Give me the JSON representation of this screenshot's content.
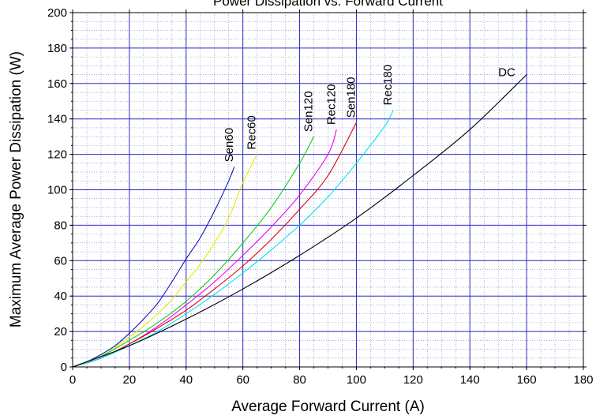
{
  "chart_data": {
    "type": "line",
    "title": "Power Dissipation vs. Forward Current",
    "xlabel": "Average Forward Current (A)",
    "ylabel": "Maximum Average Power Dissipation (W)",
    "xlim": [
      0,
      180
    ],
    "ylim": [
      0,
      200
    ],
    "x_ticks": [
      0,
      20,
      40,
      60,
      80,
      100,
      120,
      140,
      160,
      180
    ],
    "y_ticks": [
      0,
      20,
      40,
      60,
      80,
      100,
      120,
      140,
      160,
      180,
      200
    ],
    "grid": true,
    "colors": {
      "major_grid": "#2a2ac8",
      "minor_grid": "#7a7ad8"
    },
    "series": [
      {
        "name": "Sen60",
        "color": "#1010c0",
        "x": [
          0,
          5,
          10,
          15,
          20,
          25,
          30,
          35,
          40,
          45,
          50,
          55,
          57
        ],
        "y": [
          0,
          3,
          7,
          12,
          19,
          27,
          36,
          48,
          61,
          73,
          88,
          105,
          113
        ]
      },
      {
        "name": "Rec60",
        "color": "#e8e800",
        "x": [
          0,
          5,
          10,
          15,
          20,
          25,
          30,
          35,
          40,
          45,
          50,
          55,
          60,
          65
        ],
        "y": [
          0,
          3,
          6,
          11,
          17,
          23,
          30,
          38,
          48,
          58,
          70,
          84,
          104,
          120
        ]
      },
      {
        "name": "Sen120",
        "color": "#10d010",
        "x": [
          0,
          10,
          20,
          30,
          40,
          50,
          60,
          70,
          80,
          85
        ],
        "y": [
          0,
          6,
          15,
          25,
          37,
          52,
          70,
          90,
          115,
          130
        ]
      },
      {
        "name": "Rec120",
        "color": "#f000f0",
        "x": [
          0,
          10,
          20,
          30,
          40,
          50,
          60,
          70,
          80,
          90,
          93
        ],
        "y": [
          0,
          5,
          13,
          23,
          35,
          48,
          63,
          79,
          97,
          120,
          134
        ]
      },
      {
        "name": "Sen180",
        "color": "#e00000",
        "x": [
          0,
          10,
          20,
          30,
          40,
          50,
          60,
          70,
          80,
          90,
          100
        ],
        "y": [
          0,
          5,
          13,
          22,
          32,
          44,
          57,
          72,
          89,
          108,
          138
        ]
      },
      {
        "name": "Rec180",
        "color": "#00e0f0",
        "x": [
          0,
          10,
          20,
          30,
          40,
          50,
          60,
          70,
          80,
          90,
          100,
          110,
          113
        ],
        "y": [
          0,
          5,
          12,
          20,
          30,
          41,
          53,
          66,
          80,
          96,
          115,
          136,
          145
        ]
      },
      {
        "name": "DC",
        "color": "#000000",
        "x": [
          0,
          20,
          40,
          60,
          80,
          100,
          120,
          140,
          160
        ],
        "y": [
          0,
          12,
          27,
          44,
          63,
          84,
          108,
          134,
          165
        ]
      }
    ]
  }
}
